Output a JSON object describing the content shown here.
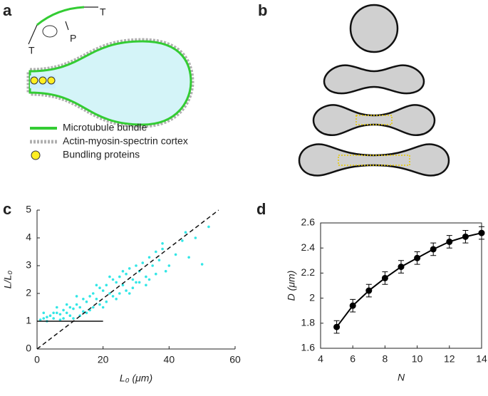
{
  "panel_labels": [
    "a",
    "b",
    "c",
    "d"
  ],
  "panel_a": {
    "force_labels": [
      "T",
      "P",
      "T"
    ],
    "legend": [
      "Microtubule bundle",
      "Actin-myosin-spectrin cortex",
      "Bundling proteins"
    ]
  },
  "chart_data": [
    {
      "type": "scatter",
      "color": "#33e6e6",
      "x": [
        1,
        2,
        3,
        4,
        5,
        6,
        7,
        8,
        9,
        10,
        11,
        12,
        13,
        14,
        15,
        16,
        17,
        18,
        19,
        20,
        21,
        22,
        23,
        24,
        25,
        26,
        27,
        28,
        29,
        30,
        31,
        32,
        33,
        34,
        35,
        36,
        37,
        38,
        40,
        42,
        44,
        46,
        48,
        50,
        52,
        3,
        5,
        7,
        9,
        11,
        13,
        15,
        17,
        19,
        21,
        23,
        25,
        27,
        29,
        31,
        33,
        36,
        39,
        2,
        6,
        10,
        14,
        18,
        22,
        26,
        30,
        8,
        12,
        16,
        20,
        24,
        28,
        34,
        38,
        45
      ],
      "y": [
        1.05,
        1.1,
        1.15,
        1.2,
        1.1,
        1.3,
        1.25,
        1.4,
        1.3,
        1.5,
        1.45,
        1.6,
        1.5,
        1.8,
        1.7,
        1.9,
        2.0,
        1.8,
        2.2,
        2.1,
        2.3,
        2.0,
        2.5,
        2.4,
        2.6,
        2.3,
        2.7,
        2.9,
        2.5,
        3.0,
        2.8,
        3.1,
        2.6,
        3.3,
        3.0,
        3.5,
        3.2,
        3.6,
        3.0,
        3.4,
        3.9,
        3.3,
        4.0,
        3.05,
        4.4,
        1.0,
        1.3,
        1.05,
        1.6,
        1.1,
        1.2,
        1.3,
        1.5,
        1.6,
        1.7,
        1.9,
        2.0,
        2.1,
        2.2,
        2.4,
        2.3,
        2.7,
        2.8,
        1.3,
        1.5,
        1.2,
        1.35,
        2.3,
        2.6,
        2.8,
        2.4,
        1.1,
        1.9,
        1.4,
        1.5,
        1.8,
        2.0,
        2.5,
        3.8,
        4.2
      ],
      "lines": [
        {
          "x": [
            0,
            55
          ],
          "y": [
            0,
            5
          ],
          "style": "dashed"
        },
        {
          "x": [
            0,
            20
          ],
          "y": [
            1,
            1
          ],
          "style": "solid"
        }
      ],
      "xlim": [
        0,
        60
      ],
      "xticks": [
        0,
        20,
        40,
        60
      ],
      "ylim": [
        0,
        5
      ],
      "yticks": [
        0,
        1,
        2,
        3,
        4,
        5
      ],
      "x_label": "L₀ (μm)",
      "y_label": "L/L₀"
    },
    {
      "type": "line",
      "color": "#000000",
      "x": [
        5,
        6,
        7,
        8,
        9,
        10,
        11,
        12,
        13,
        14
      ],
      "values": [
        1.77,
        1.94,
        2.06,
        2.16,
        2.25,
        2.32,
        2.39,
        2.45,
        2.49,
        2.52
      ],
      "errors": [
        0.05,
        0.05,
        0.05,
        0.05,
        0.05,
        0.05,
        0.05,
        0.05,
        0.05,
        0.05
      ],
      "xlim": [
        4,
        14
      ],
      "xticks": [
        4,
        6,
        8,
        10,
        12,
        14
      ],
      "ylim": [
        1.6,
        2.6
      ],
      "yticks": [
        1.6,
        1.8,
        2,
        2.2,
        2.4,
        2.6
      ],
      "x_label": "N",
      "y_label": "D (μm)"
    }
  ]
}
